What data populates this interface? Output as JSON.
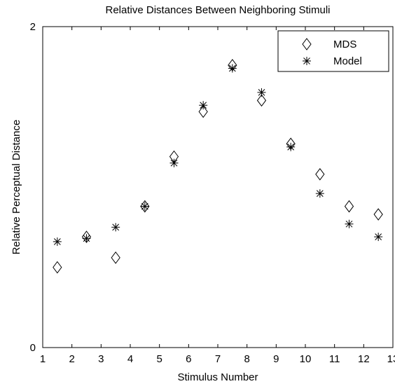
{
  "chart_data": {
    "type": "scatter",
    "title": "Relative Distances Between Neighboring Stimuli",
    "xlabel": "Stimulus Number",
    "ylabel": "Relative Perceptual Distance",
    "xlim": [
      1,
      13
    ],
    "ylim": [
      0,
      2
    ],
    "xticks": [
      "1",
      "2",
      "3",
      "4",
      "5",
      "6",
      "7",
      "8",
      "9",
      "10",
      "11",
      "12",
      "13"
    ],
    "yticks": [
      "0",
      "2"
    ],
    "x": [
      1.5,
      2.5,
      3.5,
      4.5,
      5.5,
      6.5,
      7.5,
      8.5,
      9.5,
      10.5,
      11.5,
      12.5
    ],
    "series": [
      {
        "name": "MDS",
        "marker": "diamond",
        "values": [
          0.5,
          0.69,
          0.56,
          0.88,
          1.19,
          1.47,
          1.76,
          1.54,
          1.27,
          1.08,
          0.88,
          0.83
        ]
      },
      {
        "name": "Model",
        "marker": "asterisk",
        "values": [
          0.66,
          0.68,
          0.75,
          0.88,
          1.15,
          1.51,
          1.74,
          1.59,
          1.25,
          0.96,
          0.77,
          0.69
        ]
      }
    ],
    "legend": "top-right",
    "grid": false
  }
}
